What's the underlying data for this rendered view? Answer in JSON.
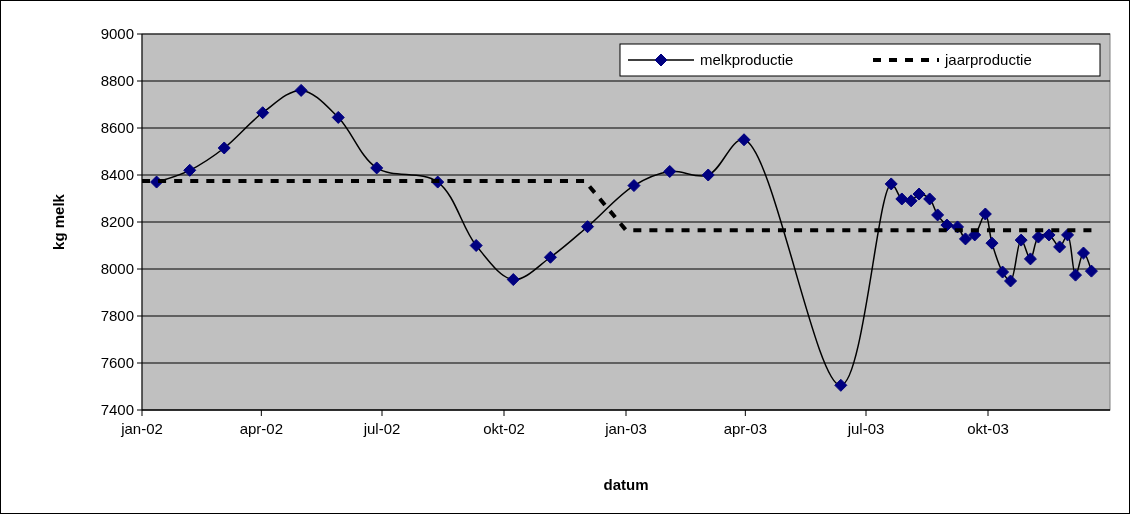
{
  "chart_data": {
    "type": "line",
    "xlabel": "datum",
    "ylabel": "kg melk",
    "ylim": [
      7400,
      9000
    ],
    "yticks": [
      7400,
      7600,
      7800,
      8000,
      8200,
      8400,
      8600,
      8800,
      9000
    ],
    "xlim": [
      "2002-01-01",
      "2004-01-01"
    ],
    "xticks": [
      {
        "value": "2002-01-01",
        "label": "jan-02"
      },
      {
        "value": "2002-04-01",
        "label": "apr-02"
      },
      {
        "value": "2002-07-01",
        "label": "jul-02"
      },
      {
        "value": "2002-10-01",
        "label": "okt-02"
      },
      {
        "value": "2003-01-01",
        "label": "jan-03"
      },
      {
        "value": "2003-04-01",
        "label": "apr-03"
      },
      {
        "value": "2003-07-01",
        "label": "jul-03"
      },
      {
        "value": "2003-10-01",
        "label": "okt-03"
      }
    ],
    "grid": "y",
    "legend": "top right",
    "series": [
      {
        "name": "melkproductie",
        "color": "#000080",
        "marker": "diamond",
        "line_style": "solid",
        "x": [
          "2002-01-12",
          "2002-02-06",
          "2002-03-04",
          "2002-04-02",
          "2002-05-01",
          "2002-05-29",
          "2002-06-27",
          "2002-08-12",
          "2002-09-10",
          "2002-10-08",
          "2002-11-05",
          "2002-12-03",
          "2003-01-07",
          "2003-02-03",
          "2003-03-04",
          "2003-03-31",
          "2003-06-12",
          "2003-07-20",
          "2003-07-28",
          "2003-08-04",
          "2003-08-10",
          "2003-08-18",
          "2003-08-24",
          "2003-08-31",
          "2003-09-08",
          "2003-09-14",
          "2003-09-21",
          "2003-09-29",
          "2003-10-04",
          "2003-10-12",
          "2003-10-18",
          "2003-10-26",
          "2003-11-02",
          "2003-11-08",
          "2003-11-16",
          "2003-11-24",
          "2003-11-30",
          "2003-12-06",
          "2003-12-12",
          "2003-12-18"
        ],
        "values": [
          8370,
          8420,
          8515,
          8665,
          8760,
          8645,
          8430,
          8370,
          8100,
          7955,
          8050,
          8180,
          8355,
          8415,
          8400,
          8550,
          7505,
          8362,
          8298,
          8290,
          8319,
          8298,
          8230,
          8187,
          8179,
          8128,
          8145,
          8234,
          8110,
          7987,
          7949,
          8123,
          8043,
          8136,
          8145,
          8094,
          8145,
          7974,
          8068,
          7991
        ]
      },
      {
        "name": "jaarproductie",
        "color": "#000000",
        "marker": "none",
        "line_style": "dashed",
        "x": [
          "2002-01-01",
          "2002-12-01",
          "2003-01-01",
          "2003-12-18"
        ],
        "values": [
          8375,
          8375,
          8165,
          8165
        ]
      }
    ]
  }
}
